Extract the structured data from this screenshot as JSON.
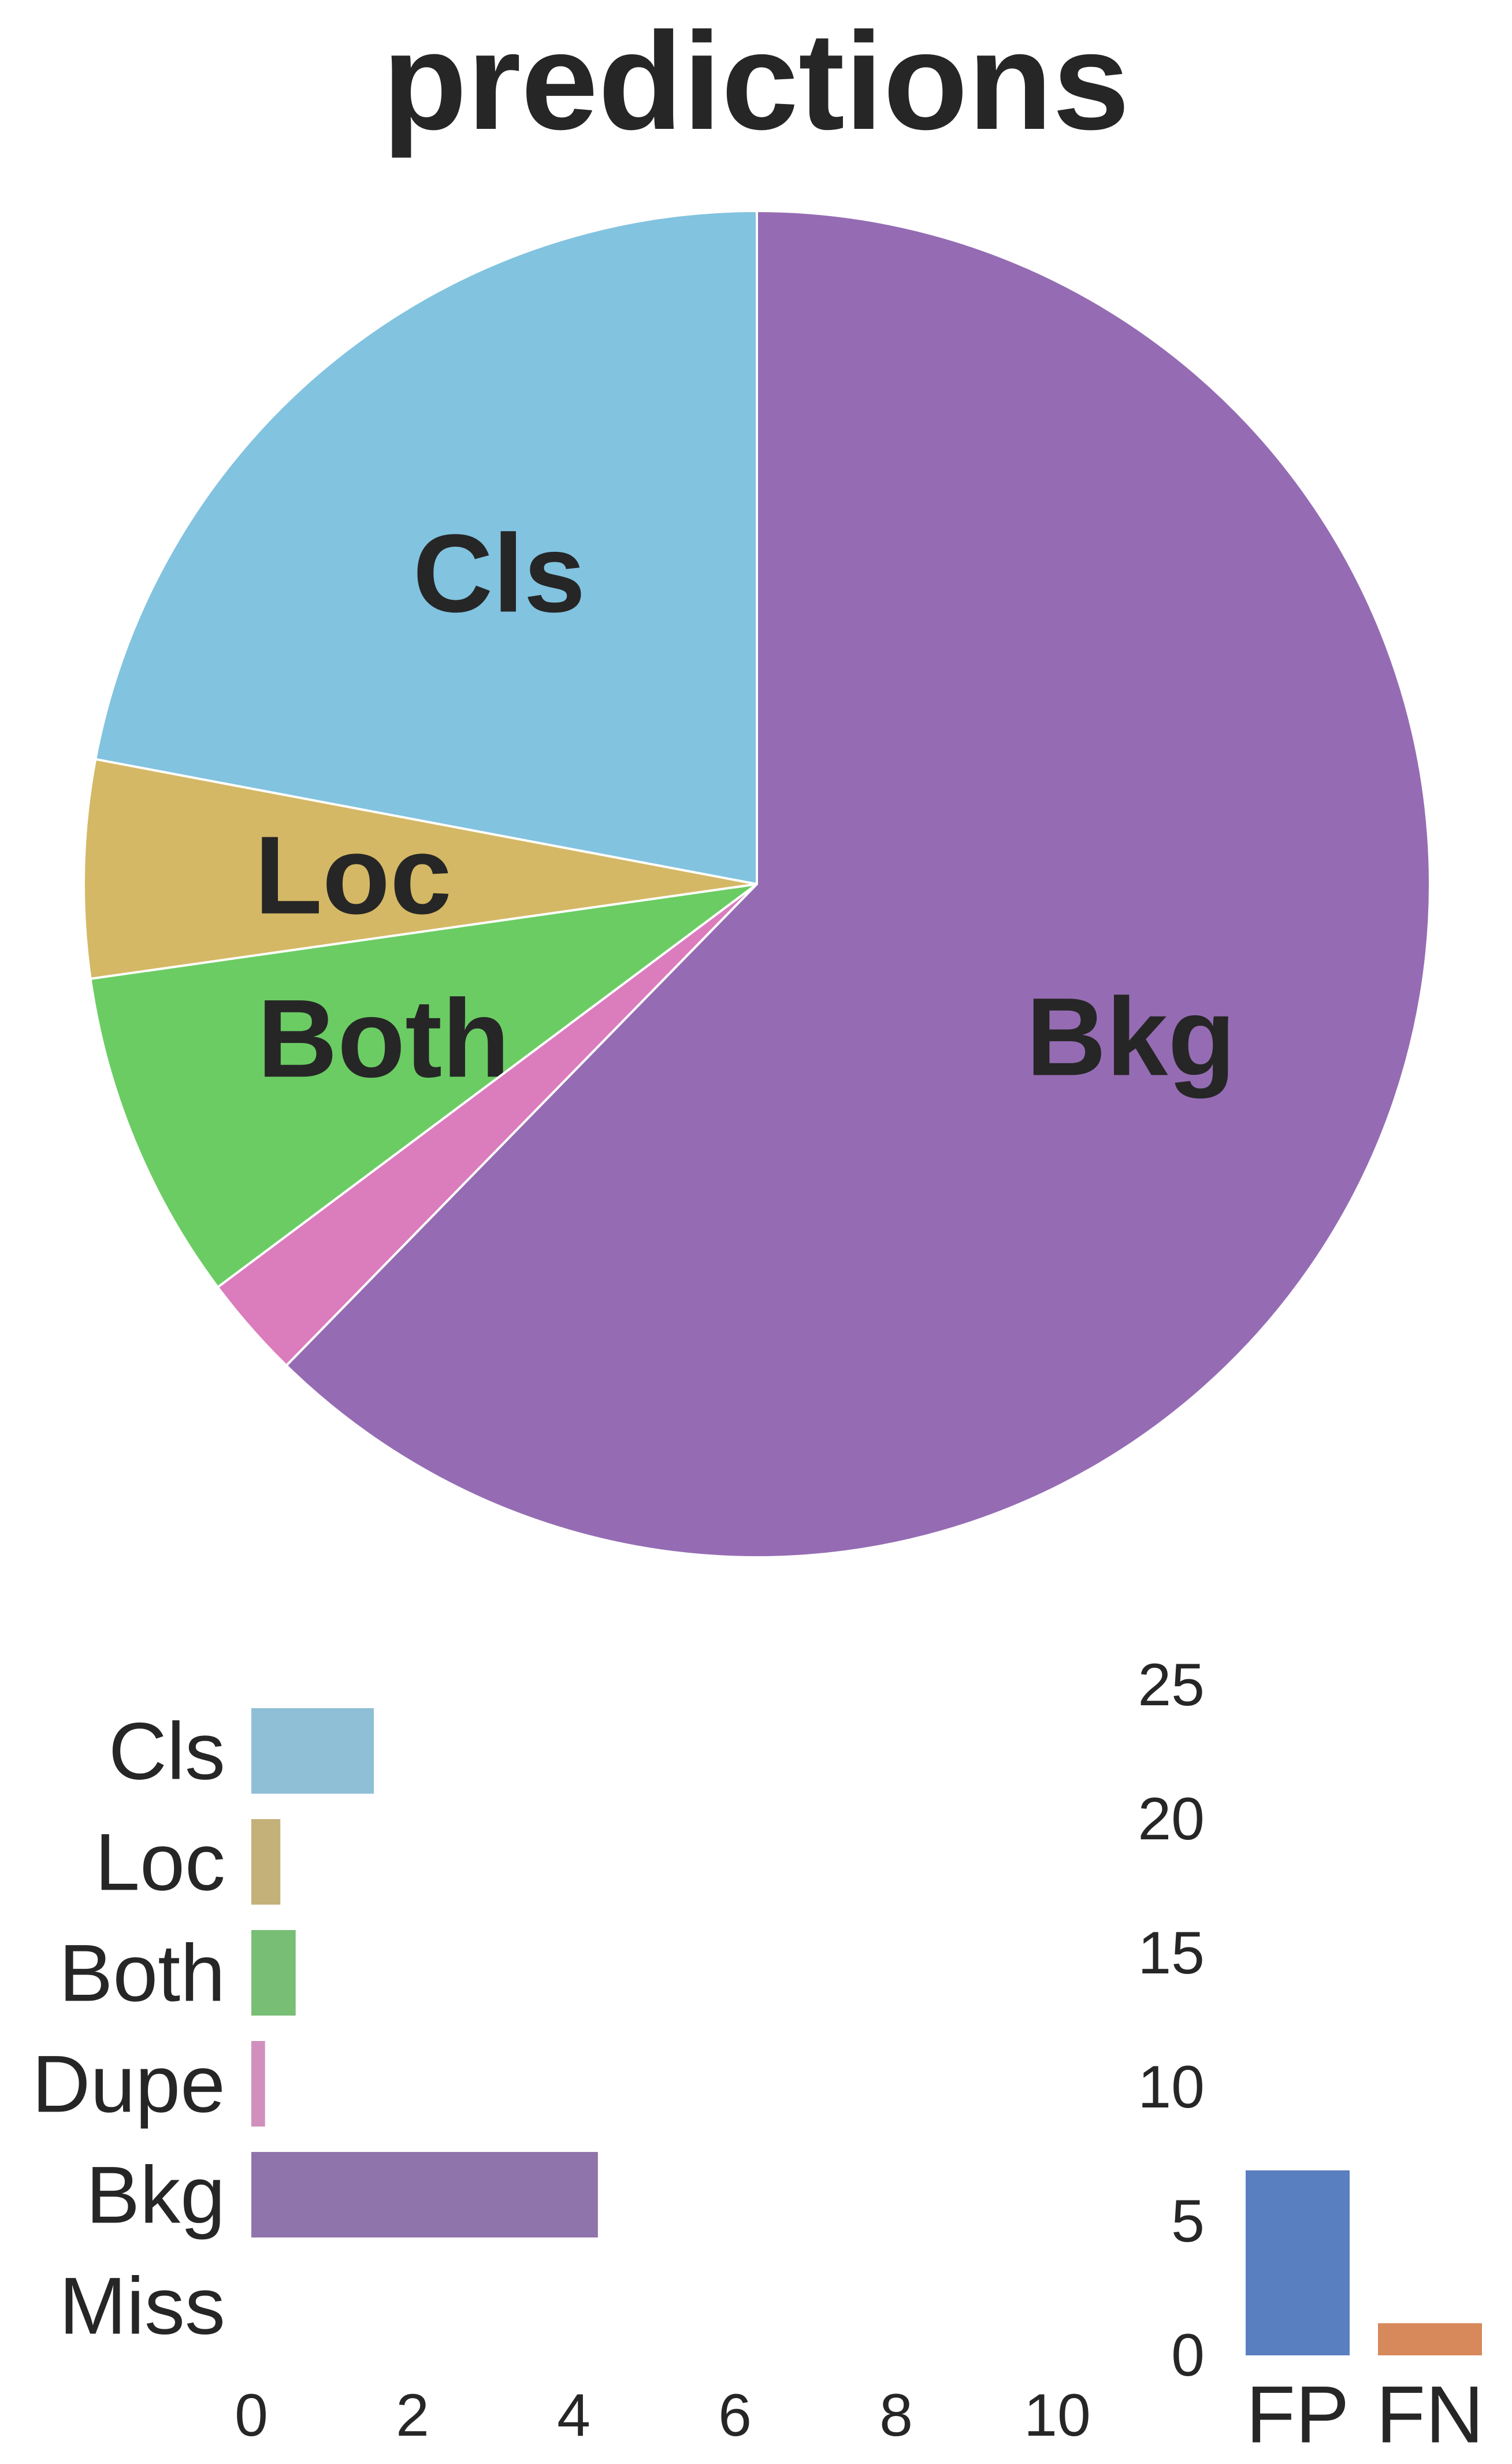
{
  "chart_data": [
    {
      "type": "pie",
      "title": "predictions",
      "start_angle_deg": 90,
      "direction": "counterclockwise",
      "slices": [
        {
          "label": "Cls",
          "value": 1.52,
          "color": "#82c3e0",
          "show_label": true
        },
        {
          "label": "Loc",
          "value": 0.36,
          "color": "#d4b865",
          "show_label": true
        },
        {
          "label": "Both",
          "value": 0.55,
          "color": "#6bcc64",
          "show_label": true
        },
        {
          "label": "Dupe",
          "value": 0.17,
          "color": "#db7cbd",
          "show_label": false
        },
        {
          "label": "Bkg",
          "value": 4.3,
          "color": "#956cb3",
          "show_label": true
        }
      ]
    },
    {
      "type": "bar",
      "orientation": "horizontal",
      "categories": [
        "Cls",
        "Loc",
        "Both",
        "Dupe",
        "Bkg",
        "Miss"
      ],
      "values": [
        1.52,
        0.36,
        0.55,
        0.17,
        4.3,
        0
      ],
      "colors": [
        "#8fbfd6",
        "#c3b179",
        "#78be74",
        "#d18fbd",
        "#8f74ab",
        "#c99a6a"
      ],
      "xlim": [
        0,
        10
      ],
      "xticks": [
        0,
        2,
        4,
        6,
        8,
        10
      ]
    },
    {
      "type": "bar",
      "orientation": "vertical",
      "categories": [
        "FP",
        "FN"
      ],
      "values": [
        6.9,
        1.2
      ],
      "colors": [
        "#5a7fc0",
        "#d8895b"
      ],
      "ylim": [
        0,
        25
      ],
      "yticks": [
        0,
        5,
        10,
        15,
        20,
        25
      ]
    }
  ]
}
